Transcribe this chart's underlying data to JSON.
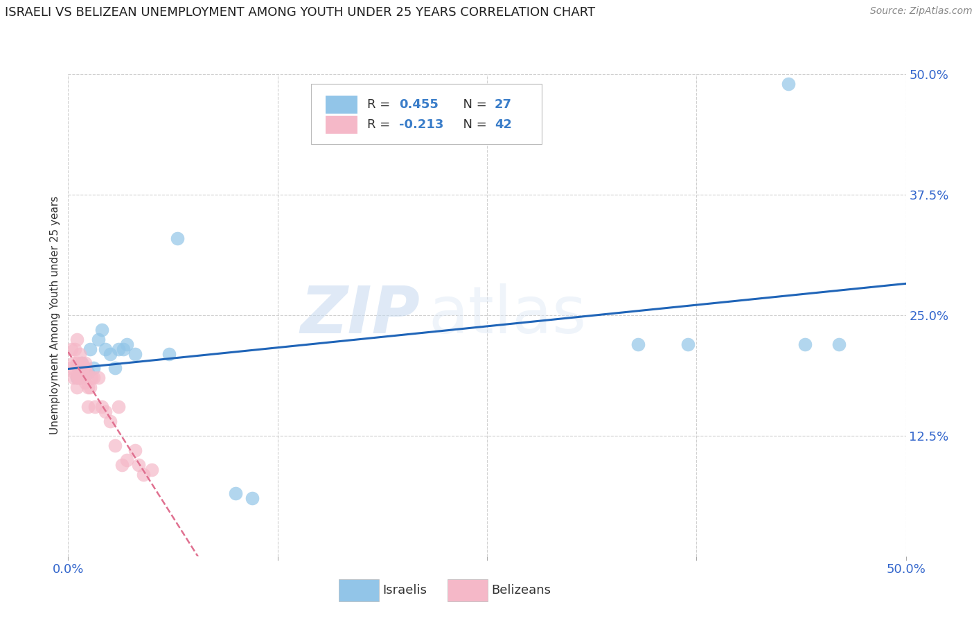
{
  "title": "ISRAELI VS BELIZEAN UNEMPLOYMENT AMONG YOUTH UNDER 25 YEARS CORRELATION CHART",
  "source": "Source: ZipAtlas.com",
  "ylabel": "Unemployment Among Youth under 25 years",
  "watermark_zip": "ZIP",
  "watermark_atlas": "atlas",
  "xlim": [
    0.0,
    0.5
  ],
  "ylim": [
    0.0,
    0.5
  ],
  "xticks": [
    0.0,
    0.125,
    0.25,
    0.375,
    0.5
  ],
  "xtick_labels": [
    "0.0%",
    "",
    "",
    "",
    "50.0%"
  ],
  "ytick_labels_right": [
    "50.0%",
    "37.5%",
    "25.0%",
    "12.5%"
  ],
  "yticks_right": [
    0.5,
    0.375,
    0.25,
    0.125
  ],
  "legend_r_israeli": "0.455",
  "legend_n_israeli": "27",
  "legend_r_belizean": "-0.213",
  "legend_n_belizean": "42",
  "israeli_color": "#92c5e8",
  "belizean_color": "#f5b8c8",
  "trend_israeli_color": "#2065b8",
  "trend_belizean_color": "#e07090",
  "background_color": "#ffffff",
  "grid_color": "#d0d0d0",
  "israeli_x": [
    0.005,
    0.006,
    0.007,
    0.008,
    0.009,
    0.01,
    0.012,
    0.013,
    0.015,
    0.018,
    0.02,
    0.022,
    0.025,
    0.028,
    0.03,
    0.033,
    0.035,
    0.04,
    0.06,
    0.065,
    0.1,
    0.11,
    0.34,
    0.37,
    0.43,
    0.44,
    0.46
  ],
  "israeli_y": [
    0.185,
    0.195,
    0.185,
    0.2,
    0.19,
    0.195,
    0.19,
    0.215,
    0.195,
    0.225,
    0.235,
    0.215,
    0.21,
    0.195,
    0.215,
    0.215,
    0.22,
    0.21,
    0.21,
    0.33,
    0.065,
    0.06,
    0.22,
    0.22,
    0.49,
    0.22,
    0.22
  ],
  "belizean_x": [
    0.002,
    0.002,
    0.003,
    0.003,
    0.004,
    0.004,
    0.005,
    0.005,
    0.005,
    0.005,
    0.006,
    0.006,
    0.007,
    0.007,
    0.007,
    0.008,
    0.008,
    0.008,
    0.009,
    0.009,
    0.01,
    0.01,
    0.01,
    0.011,
    0.012,
    0.012,
    0.013,
    0.014,
    0.015,
    0.016,
    0.018,
    0.02,
    0.022,
    0.025,
    0.028,
    0.03,
    0.032,
    0.035,
    0.04,
    0.042,
    0.045,
    0.05
  ],
  "belizean_y": [
    0.195,
    0.215,
    0.185,
    0.2,
    0.19,
    0.215,
    0.175,
    0.185,
    0.2,
    0.225,
    0.185,
    0.195,
    0.185,
    0.195,
    0.21,
    0.19,
    0.195,
    0.2,
    0.185,
    0.195,
    0.18,
    0.195,
    0.2,
    0.19,
    0.155,
    0.175,
    0.175,
    0.185,
    0.185,
    0.155,
    0.185,
    0.155,
    0.15,
    0.14,
    0.115,
    0.155,
    0.095,
    0.1,
    0.11,
    0.095,
    0.085,
    0.09
  ],
  "tick_color": "#3366cc",
  "title_fontsize": 13,
  "source_fontsize": 10,
  "tick_fontsize": 13,
  "ylabel_fontsize": 11
}
